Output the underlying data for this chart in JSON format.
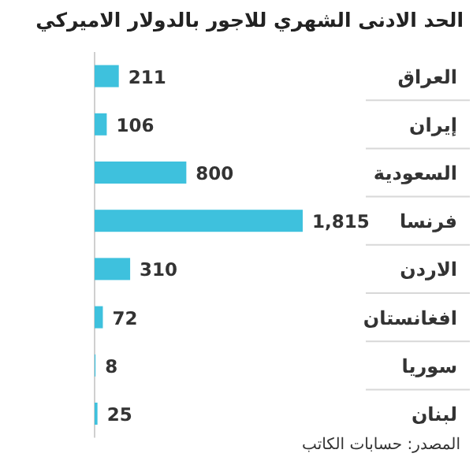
{
  "chart_data": {
    "type": "bar",
    "orientation": "horizontal",
    "title": "الحد الادنى  الشهري للاجور بالدولار الاميركي",
    "categories": [
      "العراق",
      "إيران",
      "السعودية",
      "فرنسا",
      "الاردن",
      "افغانستان",
      "سوريا",
      "لبنان"
    ],
    "values": [
      211,
      106,
      800,
      1815,
      310,
      72,
      8,
      25
    ],
    "value_labels": [
      "211",
      "106",
      "800",
      "1,815",
      "310",
      "72",
      "8",
      "25"
    ],
    "color": "#3ec1dd",
    "annotations": [
      "المصدر: حسابات الكاتب"
    ]
  }
}
